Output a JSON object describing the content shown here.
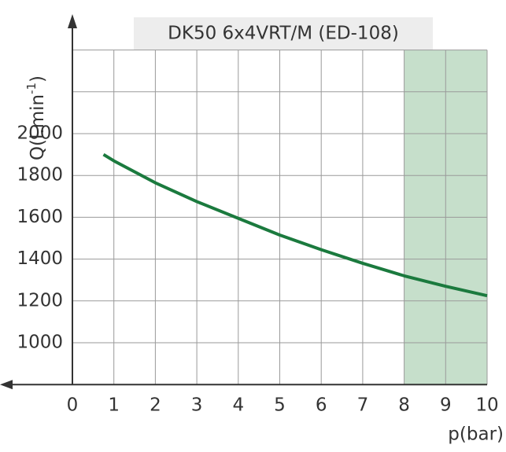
{
  "chart_data": {
    "type": "line",
    "title": "DK50 6x4VRT/M (ED-108)",
    "x_label": "p(bar)",
    "y_label": [
      "Q(l.min",
      "-1",
      ")"
    ],
    "x": [
      0.75,
      1,
      2,
      3,
      4,
      5,
      6,
      7,
      8,
      9,
      10
    ],
    "series": [
      {
        "color": "#1b7a3e",
        "values": [
          1900,
          1870,
          1765,
          1675,
          1595,
          1515,
          1445,
          1380,
          1320,
          1270,
          1225
        ]
      }
    ],
    "xlim": [
      0,
      10
    ],
    "xticks": [
      0,
      1,
      2,
      3,
      4,
      5,
      6,
      7,
      8,
      9,
      10
    ],
    "ylim": [
      800,
      2400
    ],
    "yticks": [
      1000,
      1200,
      1400,
      1600,
      1800,
      2000
    ],
    "y_gridlines": [
      1000,
      1200,
      1400,
      1600,
      1800,
      2000,
      2200,
      2400
    ],
    "grid": true,
    "shaded_region": {
      "x": [
        8,
        10
      ],
      "color": "#c6dfcb"
    }
  }
}
